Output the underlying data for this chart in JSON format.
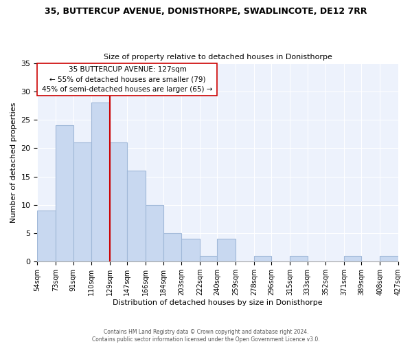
{
  "title_line1": "35, BUTTERCUP AVENUE, DONISTHORPE, SWADLINCOTE, DE12 7RR",
  "title_line2": "Size of property relative to detached houses in Donisthorpe",
  "xlabel": "Distribution of detached houses by size in Donisthorpe",
  "ylabel": "Number of detached properties",
  "bin_edges": [
    54,
    73,
    91,
    110,
    129,
    147,
    166,
    184,
    203,
    222,
    240,
    259,
    278,
    296,
    315,
    333,
    352,
    371,
    389,
    408,
    427
  ],
  "counts": [
    9,
    24,
    21,
    28,
    21,
    16,
    10,
    5,
    4,
    1,
    4,
    0,
    1,
    0,
    1,
    0,
    0,
    1,
    0,
    1
  ],
  "bar_color": "#c8d8f0",
  "bar_edgecolor": "#a0b8d8",
  "ax_facecolor": "#edf2fc",
  "property_line_x": 129,
  "property_line_color": "#cc0000",
  "ylim": [
    0,
    35
  ],
  "annotation_text": "35 BUTTERCUP AVENUE: 127sqm\n← 55% of detached houses are smaller (79)\n45% of semi-detached houses are larger (65) →",
  "annotation_box_color": "#ffffff",
  "annotation_box_edgecolor": "#cc0000",
  "footer_text": "Contains HM Land Registry data © Crown copyright and database right 2024.\nContains public sector information licensed under the Open Government Licence v3.0.",
  "tick_labels": [
    "54sqm",
    "73sqm",
    "91sqm",
    "110sqm",
    "129sqm",
    "147sqm",
    "166sqm",
    "184sqm",
    "203sqm",
    "222sqm",
    "240sqm",
    "259sqm",
    "278sqm",
    "296sqm",
    "315sqm",
    "333sqm",
    "352sqm",
    "371sqm",
    "389sqm",
    "408sqm",
    "427sqm"
  ],
  "fig_bg": "#ffffff"
}
